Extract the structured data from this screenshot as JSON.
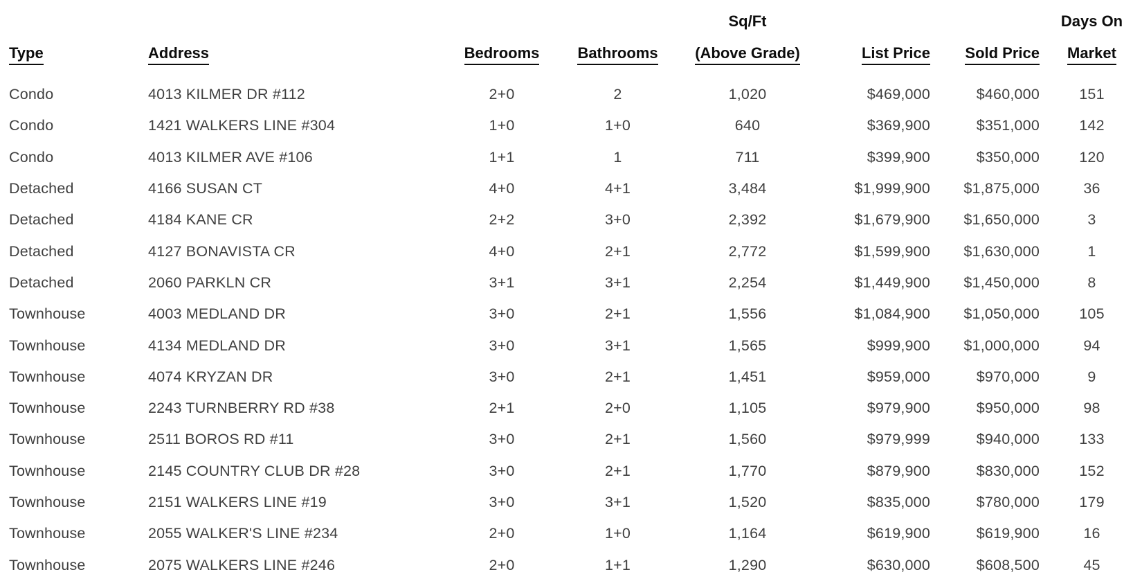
{
  "table": {
    "header": {
      "cols": [
        {
          "line1": "",
          "line2": "Type"
        },
        {
          "line1": "",
          "line2": "Address"
        },
        {
          "line1": "",
          "line2": "Bedrooms"
        },
        {
          "line1": "",
          "line2": "Bathrooms"
        },
        {
          "line1": "Sq/Ft",
          "line2": "(Above Grade)"
        },
        {
          "line1": "",
          "line2": "List Price"
        },
        {
          "line1": "",
          "line2": "Sold Price"
        },
        {
          "line1": "Days On",
          "line2": "Market"
        }
      ]
    },
    "rows": [
      {
        "type": "Condo",
        "address": "4013 KILMER DR #112",
        "bedrooms": "2+0",
        "bathrooms": "2",
        "sqft": "1,020",
        "list_price": "$469,000",
        "sold_price": "$460,000",
        "days_on_market": "151"
      },
      {
        "type": "Condo",
        "address": "1421 WALKERS LINE #304",
        "bedrooms": "1+0",
        "bathrooms": "1+0",
        "sqft": "640",
        "list_price": "$369,900",
        "sold_price": "$351,000",
        "days_on_market": "142"
      },
      {
        "type": "Condo",
        "address": "4013 KILMER AVE #106",
        "bedrooms": "1+1",
        "bathrooms": "1",
        "sqft": "711",
        "list_price": "$399,900",
        "sold_price": "$350,000",
        "days_on_market": "120"
      },
      {
        "type": "Detached",
        "address": "4166 SUSAN CT",
        "bedrooms": "4+0",
        "bathrooms": "4+1",
        "sqft": "3,484",
        "list_price": "$1,999,900",
        "sold_price": "$1,875,000",
        "days_on_market": "36"
      },
      {
        "type": "Detached",
        "address": "4184 KANE CR",
        "bedrooms": "2+2",
        "bathrooms": "3+0",
        "sqft": "2,392",
        "list_price": "$1,679,900",
        "sold_price": "$1,650,000",
        "days_on_market": "3"
      },
      {
        "type": "Detached",
        "address": "4127 BONAVISTA CR",
        "bedrooms": "4+0",
        "bathrooms": "2+1",
        "sqft": "2,772",
        "list_price": "$1,599,900",
        "sold_price": "$1,630,000",
        "days_on_market": "1"
      },
      {
        "type": "Detached",
        "address": "2060 PARKLN CR",
        "bedrooms": "3+1",
        "bathrooms": "3+1",
        "sqft": "2,254",
        "list_price": "$1,449,900",
        "sold_price": "$1,450,000",
        "days_on_market": "8"
      },
      {
        "type": "Townhouse",
        "address": "4003 MEDLAND DR",
        "bedrooms": "3+0",
        "bathrooms": "2+1",
        "sqft": "1,556",
        "list_price": "$1,084,900",
        "sold_price": "$1,050,000",
        "days_on_market": "105"
      },
      {
        "type": "Townhouse",
        "address": "4134 MEDLAND DR",
        "bedrooms": "3+0",
        "bathrooms": "3+1",
        "sqft": "1,565",
        "list_price": "$999,900",
        "sold_price": "$1,000,000",
        "days_on_market": "94"
      },
      {
        "type": "Townhouse",
        "address": "4074 KRYZAN DR",
        "bedrooms": "3+0",
        "bathrooms": "2+1",
        "sqft": "1,451",
        "list_price": "$959,000",
        "sold_price": "$970,000",
        "days_on_market": "9"
      },
      {
        "type": "Townhouse",
        "address": "2243 TURNBERRY RD #38",
        "bedrooms": "2+1",
        "bathrooms": "2+0",
        "sqft": "1,105",
        "list_price": "$979,900",
        "sold_price": "$950,000",
        "days_on_market": "98"
      },
      {
        "type": "Townhouse",
        "address": "2511 BOROS RD #11",
        "bedrooms": "3+0",
        "bathrooms": "2+1",
        "sqft": "1,560",
        "list_price": "$979,999",
        "sold_price": "$940,000",
        "days_on_market": "133"
      },
      {
        "type": "Townhouse",
        "address": "2145 COUNTRY CLUB DR #28",
        "bedrooms": "3+0",
        "bathrooms": "2+1",
        "sqft": "1,770",
        "list_price": "$879,900",
        "sold_price": "$830,000",
        "days_on_market": "152"
      },
      {
        "type": "Townhouse",
        "address": "2151 WALKERS LINE #19",
        "bedrooms": "3+0",
        "bathrooms": "3+1",
        "sqft": "1,520",
        "list_price": "$835,000",
        "sold_price": "$780,000",
        "days_on_market": "179"
      },
      {
        "type": "Townhouse",
        "address": "2055 WALKER'S LINE #234",
        "bedrooms": "2+0",
        "bathrooms": "1+0",
        "sqft": "1,164",
        "list_price": "$619,900",
        "sold_price": "$619,900",
        "days_on_market": "16"
      },
      {
        "type": "Townhouse",
        "address": "2075 WALKERS LINE #246",
        "bedrooms": "2+0",
        "bathrooms": "1+1",
        "sqft": "1,290",
        "list_price": "$630,000",
        "sold_price": "$608,500",
        "days_on_market": "45"
      }
    ]
  },
  "colors": {
    "background": "#ffffff",
    "header_text": "#0d0d0d",
    "body_text": "#3f3f3f"
  }
}
